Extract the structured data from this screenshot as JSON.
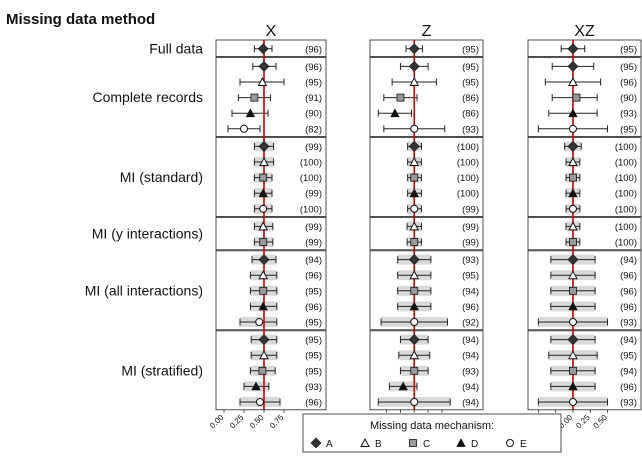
{
  "chart_data": {
    "type": "forest",
    "title": "Missing data method",
    "panel_titles": [
      "X",
      "Z",
      "XZ"
    ],
    "method_groups": [
      {
        "label": "Full data",
        "n": 1
      },
      {
        "label": "Complete records",
        "n": 5
      },
      {
        "label": "MI (standard)",
        "n": 5
      },
      {
        "label": "MI (y interactions)",
        "n": 2
      },
      {
        "label": "MI (all interactions)",
        "n": 5
      },
      {
        "label": "MI (stratified)",
        "n": 5
      }
    ],
    "row_mechanisms": [
      "A",
      "A",
      "B",
      "C",
      "D",
      "E",
      "A",
      "B",
      "C",
      "D",
      "E",
      "B",
      "C",
      "A",
      "B",
      "C",
      "D",
      "E",
      "A",
      "B",
      "C",
      "D",
      "E"
    ],
    "legend": {
      "title": "Missing data mechanism:",
      "items": [
        {
          "key": "A",
          "label": "A",
          "marker": "diamond-filled"
        },
        {
          "key": "B",
          "label": "B",
          "marker": "triangle-open"
        },
        {
          "key": "C",
          "label": "C",
          "marker": "square-grey"
        },
        {
          "key": "D",
          "label": "D",
          "marker": "triangle-filled"
        },
        {
          "key": "E",
          "label": "E",
          "marker": "circle-open"
        }
      ]
    },
    "reference_color": "#cc0000",
    "panels": [
      {
        "title": "X",
        "xlim": [
          -0.1,
          0.9
        ],
        "ticks": [
          "0.00",
          "0.25",
          "0.50",
          "0.75"
        ],
        "tick_values": [
          0.0,
          0.25,
          0.5,
          0.75
        ],
        "true_value": 0.5,
        "rows": [
          {
            "est": 0.49,
            "lo": 0.38,
            "hi": 0.6,
            "cov": "(96)"
          },
          {
            "est": 0.5,
            "lo": 0.36,
            "hi": 0.65,
            "cov": "(96)"
          },
          {
            "est": 0.48,
            "lo": 0.2,
            "hi": 0.75,
            "cov": "(95)"
          },
          {
            "est": 0.38,
            "lo": 0.18,
            "hi": 0.58,
            "cov": "(91)"
          },
          {
            "est": 0.33,
            "lo": 0.1,
            "hi": 0.55,
            "cov": "(90)"
          },
          {
            "est": 0.25,
            "lo": 0.05,
            "hi": 0.45,
            "cov": "(82)"
          },
          {
            "est": 0.5,
            "lo": 0.38,
            "hi": 0.62,
            "cov": "(99)"
          },
          {
            "est": 0.5,
            "lo": 0.38,
            "hi": 0.62,
            "cov": "(100)"
          },
          {
            "est": 0.49,
            "lo": 0.38,
            "hi": 0.6,
            "cov": "(100)"
          },
          {
            "est": 0.49,
            "lo": 0.38,
            "hi": 0.6,
            "cov": "(99)"
          },
          {
            "est": 0.49,
            "lo": 0.38,
            "hi": 0.6,
            "cov": "(100)"
          },
          {
            "est": 0.49,
            "lo": 0.38,
            "hi": 0.61,
            "cov": "(99)"
          },
          {
            "est": 0.49,
            "lo": 0.38,
            "hi": 0.61,
            "cov": "(99)"
          },
          {
            "est": 0.5,
            "lo": 0.35,
            "hi": 0.65,
            "cov": "(94)"
          },
          {
            "est": 0.49,
            "lo": 0.33,
            "hi": 0.66,
            "cov": "(96)"
          },
          {
            "est": 0.49,
            "lo": 0.33,
            "hi": 0.66,
            "cov": "(95)"
          },
          {
            "est": 0.49,
            "lo": 0.33,
            "hi": 0.66,
            "cov": "(96)"
          },
          {
            "est": 0.44,
            "lo": 0.2,
            "hi": 0.66,
            "cov": "(95)"
          },
          {
            "est": 0.5,
            "lo": 0.34,
            "hi": 0.66,
            "cov": "(95)"
          },
          {
            "est": 0.5,
            "lo": 0.34,
            "hi": 0.66,
            "cov": "(95)"
          },
          {
            "est": 0.48,
            "lo": 0.33,
            "hi": 0.64,
            "cov": "(95)"
          },
          {
            "est": 0.4,
            "lo": 0.25,
            "hi": 0.56,
            "cov": "(93)"
          },
          {
            "est": 0.45,
            "lo": 0.2,
            "hi": 0.7,
            "cov": "(96)"
          }
        ]
      },
      {
        "title": "Z",
        "xlim": [
          -0.3,
          1.2
        ],
        "ticks": [
          "0.00",
          "0.25",
          "0.50",
          "0.75",
          "1.00"
        ],
        "tick_values": [
          0.0,
          0.25,
          0.5,
          0.75,
          1.0
        ],
        "true_value": 0.5,
        "rows": [
          {
            "est": 0.5,
            "lo": 0.35,
            "hi": 0.65,
            "cov": "(95)"
          },
          {
            "est": 0.5,
            "lo": 0.25,
            "hi": 0.75,
            "cov": "(95)"
          },
          {
            "est": 0.5,
            "lo": 0.1,
            "hi": 0.9,
            "cov": "(95)"
          },
          {
            "est": 0.25,
            "lo": -0.05,
            "hi": 0.55,
            "cov": "(86)"
          },
          {
            "est": 0.15,
            "lo": -0.15,
            "hi": 0.45,
            "cov": "(86)"
          },
          {
            "est": 0.5,
            "lo": -0.05,
            "hi": 1.05,
            "cov": "(93)"
          },
          {
            "est": 0.5,
            "lo": 0.38,
            "hi": 0.63,
            "cov": "(100)"
          },
          {
            "est": 0.5,
            "lo": 0.38,
            "hi": 0.63,
            "cov": "(100)"
          },
          {
            "est": 0.5,
            "lo": 0.38,
            "hi": 0.63,
            "cov": "(100)"
          },
          {
            "est": 0.5,
            "lo": 0.38,
            "hi": 0.63,
            "cov": "(100)"
          },
          {
            "est": 0.5,
            "lo": 0.38,
            "hi": 0.63,
            "cov": "(99)"
          },
          {
            "est": 0.5,
            "lo": 0.37,
            "hi": 0.63,
            "cov": "(99)"
          },
          {
            "est": 0.5,
            "lo": 0.37,
            "hi": 0.63,
            "cov": "(99)"
          },
          {
            "est": 0.5,
            "lo": 0.2,
            "hi": 0.8,
            "cov": "(93)"
          },
          {
            "est": 0.5,
            "lo": 0.2,
            "hi": 0.8,
            "cov": "(95)"
          },
          {
            "est": 0.5,
            "lo": 0.2,
            "hi": 0.8,
            "cov": "(94)"
          },
          {
            "est": 0.5,
            "lo": 0.2,
            "hi": 0.8,
            "cov": "(96)"
          },
          {
            "est": 0.5,
            "lo": -0.1,
            "hi": 1.1,
            "cov": "(92)"
          },
          {
            "est": 0.5,
            "lo": 0.25,
            "hi": 0.75,
            "cov": "(94)"
          },
          {
            "est": 0.5,
            "lo": 0.22,
            "hi": 0.78,
            "cov": "(94)"
          },
          {
            "est": 0.5,
            "lo": 0.25,
            "hi": 0.75,
            "cov": "(93)"
          },
          {
            "est": 0.3,
            "lo": 0.05,
            "hi": 0.55,
            "cov": "(94)"
          },
          {
            "est": 0.5,
            "lo": -0.15,
            "hi": 1.15,
            "cov": "(94)"
          }
        ]
      },
      {
        "title": "XZ",
        "xlim": [
          -0.65,
          0.55
        ],
        "ticks": [
          "-0.50",
          "-0.25",
          "0.00",
          "0.25",
          "0.50"
        ],
        "tick_values": [
          -0.5,
          -0.25,
          0.0,
          0.25,
          0.5
        ],
        "true_value": 0.0,
        "rows": [
          {
            "est": 0.0,
            "lo": -0.17,
            "hi": 0.17,
            "cov": "(95)"
          },
          {
            "est": 0.0,
            "lo": -0.3,
            "hi": 0.3,
            "cov": "(95)"
          },
          {
            "est": 0.0,
            "lo": -0.4,
            "hi": 0.4,
            "cov": "(96)"
          },
          {
            "est": 0.05,
            "lo": -0.3,
            "hi": 0.35,
            "cov": "(90)"
          },
          {
            "est": 0.0,
            "lo": -0.35,
            "hi": 0.35,
            "cov": "(93)"
          },
          {
            "est": 0.0,
            "lo": -0.5,
            "hi": 0.5,
            "cov": "(95)"
          },
          {
            "est": 0.0,
            "lo": -0.12,
            "hi": 0.12,
            "cov": "(100)"
          },
          {
            "est": 0.0,
            "lo": -0.1,
            "hi": 0.1,
            "cov": "(100)"
          },
          {
            "est": 0.0,
            "lo": -0.1,
            "hi": 0.1,
            "cov": "(100)"
          },
          {
            "est": 0.0,
            "lo": -0.1,
            "hi": 0.1,
            "cov": "(100)"
          },
          {
            "est": 0.0,
            "lo": -0.1,
            "hi": 0.1,
            "cov": "(100)"
          },
          {
            "est": 0.0,
            "lo": -0.1,
            "hi": 0.1,
            "cov": "(100)"
          },
          {
            "est": 0.0,
            "lo": -0.1,
            "hi": 0.1,
            "cov": "(100)"
          },
          {
            "est": 0.0,
            "lo": -0.32,
            "hi": 0.32,
            "cov": "(94)"
          },
          {
            "est": 0.0,
            "lo": -0.32,
            "hi": 0.32,
            "cov": "(96)"
          },
          {
            "est": 0.0,
            "lo": -0.32,
            "hi": 0.32,
            "cov": "(96)"
          },
          {
            "est": 0.0,
            "lo": -0.32,
            "hi": 0.32,
            "cov": "(96)"
          },
          {
            "est": 0.0,
            "lo": -0.5,
            "hi": 0.5,
            "cov": "(93)"
          },
          {
            "est": 0.0,
            "lo": -0.32,
            "hi": 0.32,
            "cov": "(94)"
          },
          {
            "est": 0.0,
            "lo": -0.35,
            "hi": 0.35,
            "cov": "(95)"
          },
          {
            "est": 0.0,
            "lo": -0.32,
            "hi": 0.32,
            "cov": "(94)"
          },
          {
            "est": 0.0,
            "lo": -0.32,
            "hi": 0.32,
            "cov": "(96)"
          },
          {
            "est": 0.0,
            "lo": -0.5,
            "hi": 0.5,
            "cov": "(93)"
          }
        ]
      }
    ]
  }
}
